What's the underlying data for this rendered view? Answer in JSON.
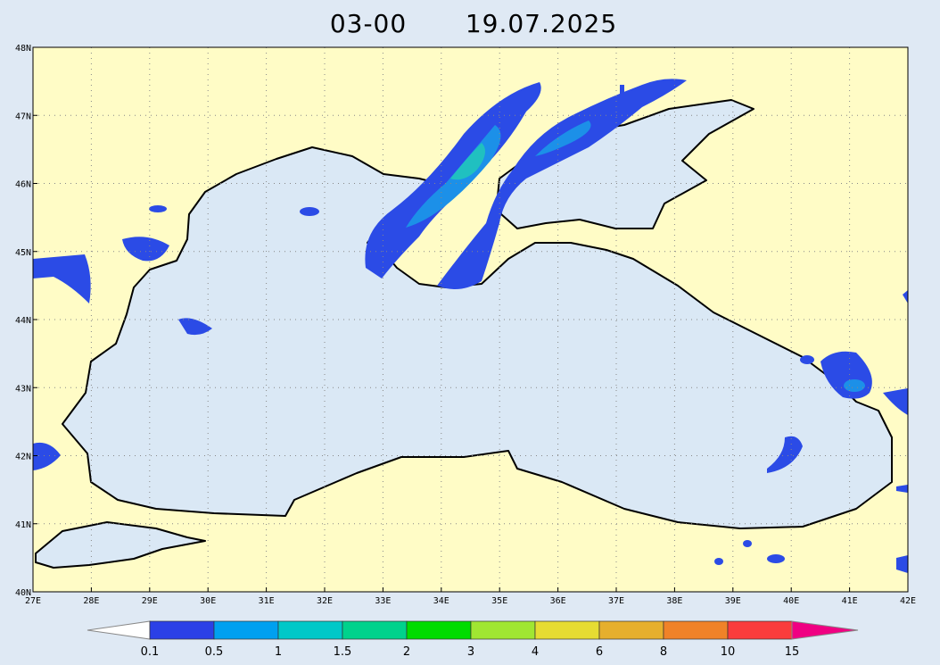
{
  "title": {
    "time": "03-00",
    "date": "19.07.2025"
  },
  "axes": {
    "lon_labels": [
      "27E",
      "28E",
      "29E",
      "30E",
      "31E",
      "32E",
      "33E",
      "34E",
      "35E",
      "36E",
      "37E",
      "38E",
      "39E",
      "40E",
      "41E",
      "42E"
    ],
    "lat_labels": [
      "40N",
      "41N",
      "42N",
      "43N",
      "44N",
      "45N",
      "46N",
      "47N",
      "48N"
    ]
  },
  "colorbar": {
    "labels": [
      "0.1",
      "0.5",
      "1",
      "1.5",
      "2",
      "3",
      "4",
      "6",
      "8",
      "10",
      "15"
    ],
    "colors": [
      "#ffffff",
      "#2b40e6",
      "#00a0f0",
      "#00c8c8",
      "#00d28c",
      "#00dc00",
      "#a0e632",
      "#e6dc32",
      "#e6af2d",
      "#f08228",
      "#fa3c3c",
      "#f00082"
    ]
  }
}
